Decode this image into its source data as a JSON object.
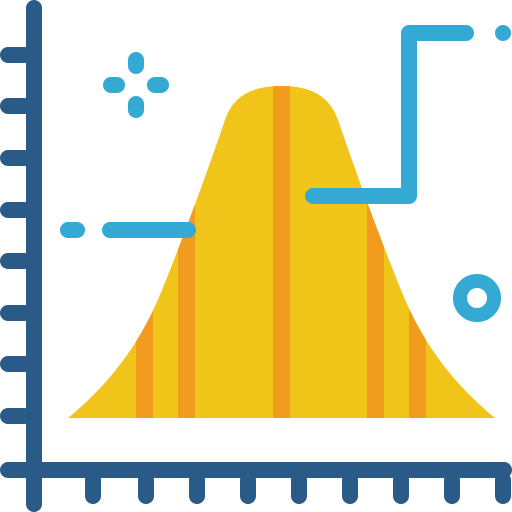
{
  "icon": {
    "name": "bell-curve-chart-icon",
    "colors": {
      "axis": "#2a5a87",
      "curve_fill": "#f0c419",
      "curve_stripes": "#f29c1f",
      "lines": "#33a9d4",
      "background": "#ffffff"
    }
  }
}
